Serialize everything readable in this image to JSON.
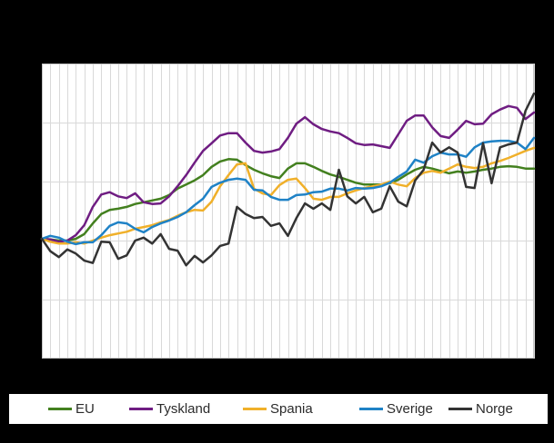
{
  "theme": {
    "background": "#000000",
    "plot_background": "#ffffff",
    "gridline_color": "#d9d9d9",
    "plot_border_color": "#c6c6c6",
    "legend_background": "#ffffff",
    "legend_text_color": "#2b2b2b"
  },
  "chart_data": {
    "type": "line",
    "n_points": 59,
    "x": [
      0,
      1,
      2,
      3,
      4,
      5,
      6,
      7,
      8,
      9,
      10,
      11,
      12,
      13,
      14,
      15,
      16,
      17,
      18,
      19,
      20,
      21,
      22,
      23,
      24,
      25,
      26,
      27,
      28,
      29,
      30,
      31,
      32,
      33,
      34,
      35,
      36,
      37,
      38,
      39,
      40,
      41,
      42,
      43,
      44,
      45,
      46,
      47,
      48,
      49,
      50,
      51,
      52,
      53,
      54,
      55,
      56,
      57,
      58
    ],
    "series": [
      {
        "name": "EU",
        "color": "#43801f",
        "values": [
          100.3,
          100.2,
          100.0,
          100.0,
          100.3,
          101.1,
          102.9,
          104.5,
          105.2,
          105.4,
          105.7,
          106.2,
          106.5,
          106.8,
          107.1,
          107.7,
          108.8,
          109.5,
          110.2,
          111.1,
          112.5,
          113.4,
          113.8,
          113.7,
          112.8,
          112.0,
          111.4,
          110.9,
          110.6,
          112.2,
          113.1,
          113.1,
          112.5,
          111.8,
          111.2,
          110.8,
          110.3,
          109.8,
          109.5,
          109.5,
          109.5,
          109.7,
          110.3,
          111.2,
          112.0,
          112.5,
          112.2,
          111.8,
          111.4,
          111.7,
          111.5,
          111.7,
          112.0,
          112.2,
          112.5,
          112.6,
          112.5,
          112.2,
          112.2
        ]
      },
      {
        "name": "Tyskland",
        "color": "#6f1d82",
        "values": [
          100.3,
          100.2,
          99.8,
          100.0,
          100.9,
          102.6,
          105.7,
          107.8,
          108.2,
          107.5,
          107.2,
          108.0,
          106.5,
          106.2,
          106.3,
          107.5,
          109.2,
          111.1,
          113.2,
          115.2,
          116.5,
          117.8,
          118.2,
          118.2,
          116.6,
          115.2,
          114.9,
          115.1,
          115.5,
          117.4,
          119.8,
          120.9,
          119.7,
          118.9,
          118.5,
          118.2,
          117.4,
          116.5,
          116.2,
          116.3,
          116.0,
          115.7,
          118.0,
          120.3,
          121.2,
          121.2,
          119.2,
          117.7,
          117.4,
          118.8,
          120.3,
          119.7,
          119.8,
          121.4,
          122.2,
          122.8,
          122.5,
          120.6,
          121.7
        ]
      },
      {
        "name": "Spania",
        "color": "#f0b02a",
        "values": [
          100.3,
          99.8,
          99.5,
          99.5,
          99.7,
          99.5,
          100.0,
          100.5,
          100.9,
          101.2,
          101.5,
          102.0,
          102.3,
          102.6,
          103.1,
          103.5,
          104.2,
          104.8,
          105.2,
          105.1,
          106.6,
          109.2,
          111.1,
          112.9,
          113.1,
          108.8,
          108.0,
          107.7,
          109.4,
          110.3,
          110.5,
          108.9,
          107.1,
          106.9,
          107.4,
          107.4,
          108.0,
          108.5,
          108.9,
          109.2,
          109.5,
          110.0,
          109.5,
          109.2,
          110.6,
          111.5,
          111.8,
          111.5,
          112.2,
          112.9,
          112.5,
          112.3,
          112.5,
          113.1,
          113.5,
          114.0,
          114.6,
          115.2,
          115.7
        ]
      },
      {
        "name": "Sverige",
        "color": "#1f82c6",
        "values": [
          100.3,
          100.8,
          100.5,
          99.8,
          99.4,
          99.7,
          99.7,
          100.9,
          102.5,
          103.1,
          102.9,
          102.0,
          101.4,
          102.3,
          102.9,
          103.4,
          104.0,
          104.8,
          106.0,
          107.1,
          109.1,
          109.8,
          110.3,
          110.5,
          110.3,
          108.6,
          108.5,
          107.4,
          106.9,
          106.9,
          107.7,
          107.8,
          108.2,
          108.3,
          108.8,
          108.8,
          108.5,
          108.9,
          108.8,
          108.9,
          109.2,
          109.8,
          110.8,
          111.7,
          113.7,
          113.2,
          114.3,
          114.9,
          114.6,
          114.6,
          114.2,
          115.8,
          116.6,
          116.8,
          116.9,
          116.9,
          116.6,
          115.5,
          117.4
        ]
      },
      {
        "name": "Norge",
        "color": "#333333",
        "values": [
          100.3,
          98.2,
          97.2,
          98.5,
          97.8,
          96.6,
          96.2,
          99.8,
          99.7,
          96.9,
          97.5,
          100.0,
          100.5,
          99.5,
          101.1,
          98.6,
          98.3,
          95.8,
          97.4,
          96.3,
          97.5,
          99.1,
          99.5,
          105.7,
          104.5,
          103.8,
          104.0,
          102.5,
          102.9,
          100.8,
          103.8,
          106.3,
          105.4,
          106.3,
          105.2,
          112.0,
          107.5,
          106.3,
          107.4,
          104.8,
          105.4,
          109.2,
          106.6,
          105.8,
          110.2,
          112.0,
          116.6,
          114.9,
          115.8,
          114.9,
          109.1,
          108.9,
          116.5,
          109.7,
          115.8,
          116.3,
          116.6,
          122.0,
          124.9
        ]
      }
    ],
    "ylim": [
      80,
      130
    ],
    "y_gridlines": [
      90,
      100,
      110,
      120
    ],
    "x_gridline_every": 1,
    "grid": true,
    "axis_tick_labels_visible": false,
    "legend_position": "bottom"
  },
  "legend": {
    "items": [
      {
        "label": "EU"
      },
      {
        "label": "Tyskland"
      },
      {
        "label": "Spania"
      },
      {
        "label": "Sverige"
      },
      {
        "label": "Norge"
      }
    ]
  }
}
